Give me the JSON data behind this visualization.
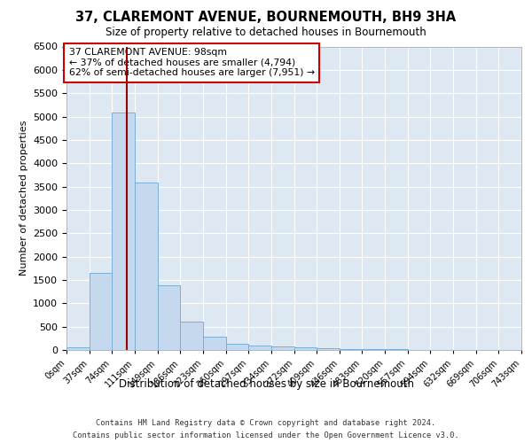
{
  "title": "37, CLAREMONT AVENUE, BOURNEMOUTH, BH9 3HA",
  "subtitle": "Size of property relative to detached houses in Bournemouth",
  "xlabel": "Distribution of detached houses by size in Bournemouth",
  "ylabel": "Number of detached properties",
  "bar_color": "#c5d8ee",
  "bar_edge_color": "#7aafd4",
  "background_color": "#dde8f3",
  "grid_color": "#ffffff",
  "annotation_text": "37 CLAREMONT AVENUE: 98sqm\n← 37% of detached houses are smaller (4,794)\n62% of semi-detached houses are larger (7,951) →",
  "annotation_box_color": "#ffffff",
  "annotation_box_edge": "#cc0000",
  "vline_x": 98,
  "vline_color": "#990000",
  "footer_line1": "Contains HM Land Registry data © Crown copyright and database right 2024.",
  "footer_line2": "Contains public sector information licensed under the Open Government Licence v3.0.",
  "bin_edges": [
    0,
    37,
    74,
    111,
    149,
    186,
    223,
    260,
    297,
    334,
    372,
    409,
    446,
    483,
    520,
    557,
    594,
    632,
    669,
    706,
    743
  ],
  "bar_heights": [
    60,
    1650,
    5080,
    3580,
    1390,
    600,
    280,
    130,
    100,
    80,
    55,
    35,
    25,
    20,
    12,
    8,
    6,
    5,
    4,
    3
  ],
  "ylim": [
    0,
    6500
  ],
  "yticks": [
    0,
    500,
    1000,
    1500,
    2000,
    2500,
    3000,
    3500,
    4000,
    4500,
    5000,
    5500,
    6000,
    6500
  ]
}
